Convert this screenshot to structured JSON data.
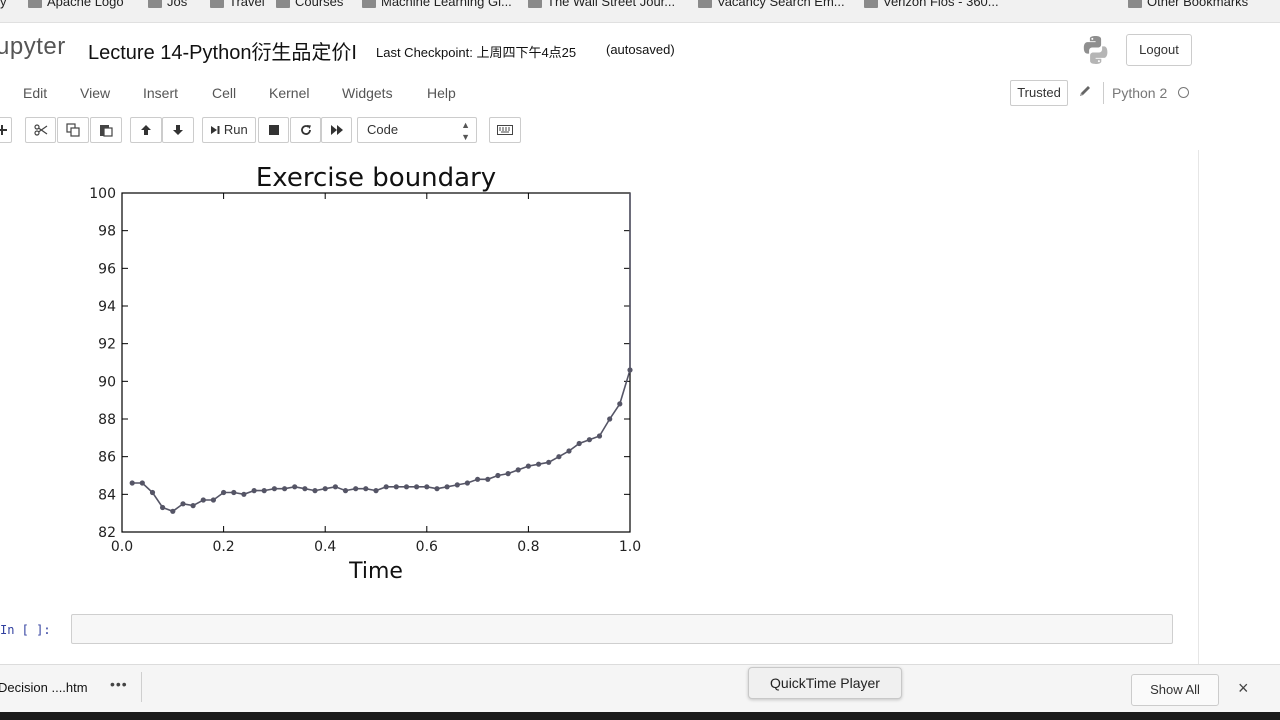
{
  "bookmarks": [
    "y",
    "Apache Logo",
    "Jos",
    "Travel",
    "Courses",
    "Machine Learning Gi...",
    "The Wall Street Jour...",
    "Vacancy Search Em...",
    "Verizon Fios - 360...",
    "Other Bookmarks"
  ],
  "header": {
    "logo_text": "upyter",
    "notebook_title": "Lecture 14-Python衍生品定价I",
    "checkpoint": "Last Checkpoint: 上周四下午4点25",
    "autosaved": "(autosaved)",
    "logout_label": "Logout"
  },
  "menu": {
    "items": [
      "Edit",
      "View",
      "Insert",
      "Cell",
      "Kernel",
      "Widgets",
      "Help"
    ],
    "trusted_label": "Trusted",
    "kernel_name": "Python 2"
  },
  "toolbar": {
    "run_label": "Run",
    "cell_type": "Code"
  },
  "chart_data": {
    "type": "line",
    "title": "Exercise boundary",
    "xlabel": "Time",
    "ylabel": "",
    "xlim": [
      0.0,
      1.0
    ],
    "ylim": [
      82,
      100
    ],
    "xticks": [
      "0.0",
      "0.2",
      "0.4",
      "0.6",
      "0.8",
      "1.0"
    ],
    "yticks": [
      "82",
      "84",
      "86",
      "88",
      "90",
      "92",
      "94",
      "96",
      "98",
      "100"
    ],
    "grid": false,
    "color": "#555566",
    "x": [
      0.02,
      0.04,
      0.06,
      0.08,
      0.1,
      0.12,
      0.14,
      0.16,
      0.18,
      0.2,
      0.22,
      0.24,
      0.26,
      0.28,
      0.3,
      0.32,
      0.34,
      0.36,
      0.38,
      0.4,
      0.42,
      0.44,
      0.46,
      0.48,
      0.5,
      0.52,
      0.54,
      0.56,
      0.58,
      0.6,
      0.62,
      0.64,
      0.66,
      0.68,
      0.7,
      0.72,
      0.74,
      0.76,
      0.78,
      0.8,
      0.82,
      0.84,
      0.86,
      0.88,
      0.9,
      0.92,
      0.94,
      0.96,
      0.98,
      1.0
    ],
    "y": [
      84.6,
      84.6,
      84.1,
      83.3,
      83.1,
      83.5,
      83.4,
      83.7,
      83.7,
      84.1,
      84.1,
      84.0,
      84.2,
      84.2,
      84.3,
      84.3,
      84.4,
      84.3,
      84.2,
      84.3,
      84.4,
      84.2,
      84.3,
      84.3,
      84.2,
      84.4,
      84.4,
      84.4,
      84.4,
      84.4,
      84.3,
      84.4,
      84.5,
      84.6,
      84.8,
      84.8,
      85.0,
      85.1,
      85.3,
      85.5,
      85.6,
      85.7,
      86.0,
      86.3,
      86.7,
      86.9,
      87.1,
      88.0,
      88.8,
      90.6
    ]
  },
  "notebook": {
    "in_prompt": "In [ ]:"
  },
  "downloads_bar": {
    "file_name": "Decision ....htm",
    "more": "•••",
    "tooltip": "QuickTime Player",
    "show_all_label": "Show All",
    "close": "×"
  }
}
